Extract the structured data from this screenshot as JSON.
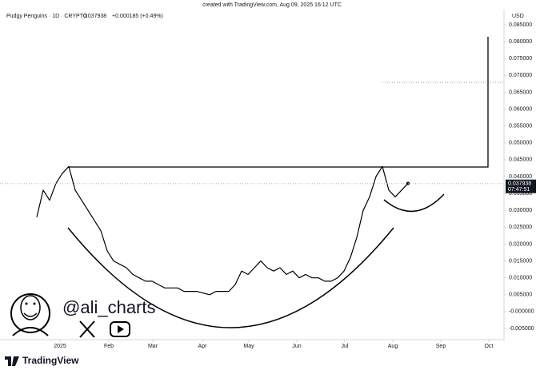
{
  "header": {
    "created": "created with TradingView.com, Aug 09, 2025 16:12 UTC",
    "symbol": "Pudgy Penguins · 1D · CRYPTO",
    "change": "+0.000185 (+0.49%)",
    "currency": "USD",
    "countdown": "07:47:51"
  },
  "watermark": {
    "handle": "@ali_charts",
    "brand": "TradingView"
  },
  "chart_data": {
    "type": "line",
    "color": "#000000",
    "last_price": 0.037938,
    "values": [
      0.028,
      0.036,
      0.033,
      0.038,
      0.041,
      0.043,
      0.036,
      0.033,
      0.03,
      0.027,
      0.024,
      0.018,
      0.015,
      0.014,
      0.013,
      0.011,
      0.01,
      0.009,
      0.009,
      0.008,
      0.007,
      0.007,
      0.007,
      0.006,
      0.006,
      0.006,
      0.0055,
      0.005,
      0.006,
      0.006,
      0.006,
      0.008,
      0.012,
      0.011,
      0.013,
      0.015,
      0.013,
      0.012,
      0.013,
      0.011,
      0.012,
      0.01,
      0.011,
      0.01,
      0.01,
      0.009,
      0.009,
      0.01,
      0.012,
      0.016,
      0.022,
      0.03,
      0.034,
      0.04,
      0.043,
      0.036,
      0.034,
      0.036,
      0.038
    ],
    "xlim": [
      -5.75,
      73
    ],
    "xticks": [
      {
        "value": 3.625,
        "label": "2025"
      },
      {
        "value": 11.25,
        "label": "Feb"
      },
      {
        "value": 18.125,
        "label": "Mar"
      },
      {
        "value": 25.875,
        "label": "Apr"
      },
      {
        "value": 33.125,
        "label": "May"
      },
      {
        "value": 40.625,
        "label": "Jun"
      },
      {
        "value": 48.125,
        "label": "Jul"
      },
      {
        "value": 55.625,
        "label": "Aug"
      },
      {
        "value": 63.125,
        "label": "Sep"
      },
      {
        "value": 70.625,
        "label": "Oct"
      }
    ],
    "ylim": [
      -0.005,
      0.085
    ],
    "yticks": [
      {
        "value": 0.085,
        "label": "0.085000"
      },
      {
        "value": 0.08,
        "label": "0.080000"
      },
      {
        "value": 0.075,
        "label": "0.075000"
      },
      {
        "value": 0.07,
        "label": "0.070000"
      },
      {
        "value": 0.065,
        "label": "0.065000"
      },
      {
        "value": 0.06,
        "label": "0.060000"
      },
      {
        "value": 0.055,
        "label": "0.055000"
      },
      {
        "value": 0.05,
        "label": "0.050000"
      },
      {
        "value": 0.045,
        "label": "0.045000"
      },
      {
        "value": 0.04,
        "label": "0.040000"
      },
      {
        "value": 0.035,
        "label": "0.035000"
      },
      {
        "value": 0.03,
        "label": "0.030000"
      },
      {
        "value": 0.025,
        "label": "0.025000"
      },
      {
        "value": 0.02,
        "label": "0.020000"
      },
      {
        "value": 0.015,
        "label": "0.015000"
      },
      {
        "value": 0.01,
        "label": "0.010000"
      },
      {
        "value": 0.005,
        "label": "0.005000"
      },
      {
        "value": 0,
        "label": "-0.000000"
      },
      {
        "value": -0.005,
        "label": "-0.005000"
      }
    ]
  }
}
